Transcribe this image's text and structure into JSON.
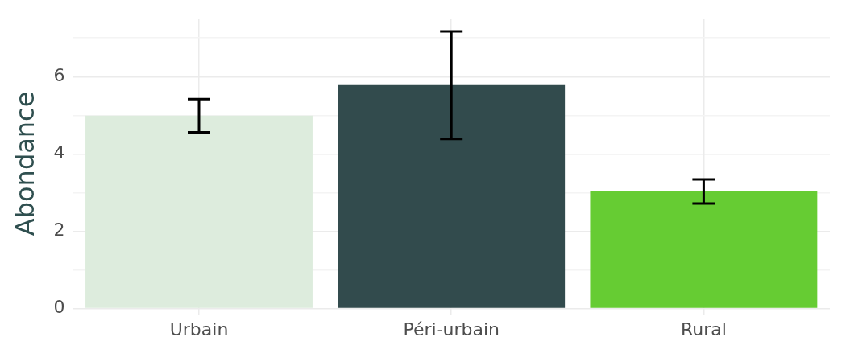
{
  "chart_data": {
    "type": "bar",
    "ylabel": "Abondance",
    "categories": [
      "Urbain",
      "Péri-urbain",
      "Rural"
    ],
    "values": [
      4.99,
      5.78,
      3.03
    ],
    "colors": [
      "#ddecdd",
      "#324b4d",
      "#66cc33"
    ],
    "errors": [
      0.43,
      1.39,
      0.31
    ],
    "ylim": [
      0,
      7.5
    ],
    "yticks": [
      0,
      {
        "value": 1,
        "label": null
      },
      2,
      {
        "value": 3,
        "label": null
      },
      4,
      {
        "value": 5,
        "label": null
      },
      6,
      {
        "value": 7,
        "label": null
      }
    ],
    "grid": true,
    "legend": false
  }
}
